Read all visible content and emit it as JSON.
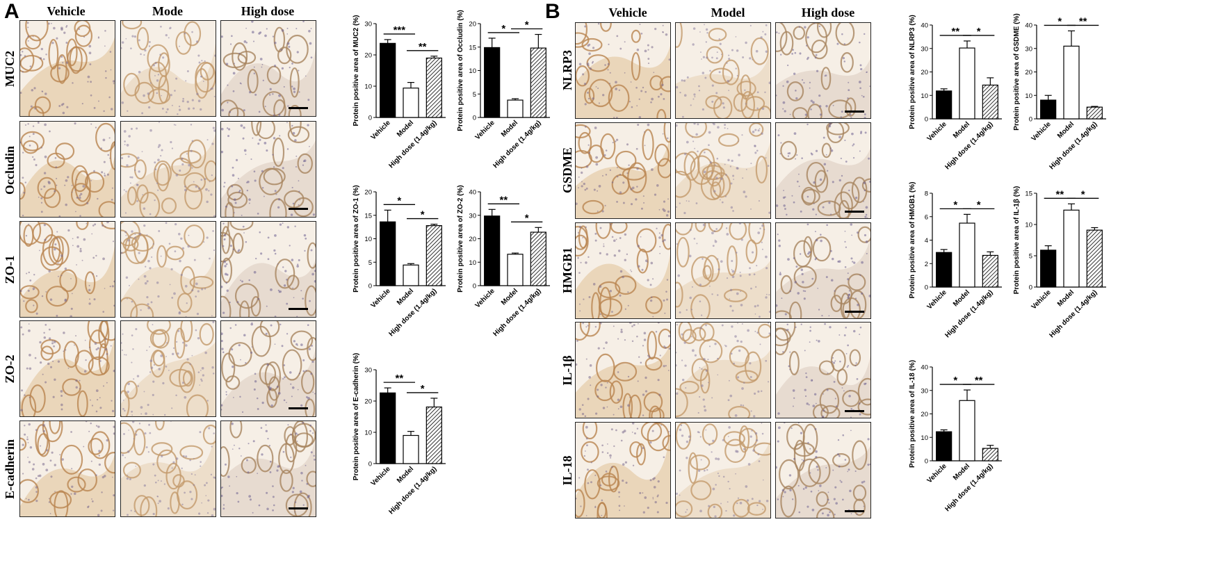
{
  "panels": [
    {
      "letter": "A",
      "columns": [
        "Vehicle",
        "Mode",
        "High dose"
      ],
      "rows": [
        "MUC2",
        "Occludin",
        "ZO-1",
        "ZO-2",
        "E-cadherin"
      ]
    },
    {
      "letter": "B",
      "columns": [
        "Vehicle",
        "Model",
        "High dose"
      ],
      "rows": [
        "NLRP3",
        "GSDME",
        "HMGB1",
        "IL-1β",
        "IL-18"
      ]
    }
  ],
  "colors": {
    "bar_fill_vehicle": "#000000",
    "bar_fill_model": "#ffffff",
    "bar_stroke": "#000000"
  },
  "chart_data": [
    {
      "type": "bar",
      "ylabel": "Protein positive area of MUC2 (%)",
      "categories": [
        "Vehicle",
        "Model",
        "High  dose (1.4g/kg)"
      ],
      "values": [
        23.7,
        9.4,
        19.0
      ],
      "errors": [
        1.2,
        1.8,
        0.6
      ],
      "ylim": [
        0,
        30
      ],
      "yticks": [
        0,
        10,
        20,
        30
      ],
      "sig": [
        {
          "from": 0,
          "to": 1,
          "label": "***"
        },
        {
          "from": 1,
          "to": 2,
          "label": "**"
        }
      ]
    },
    {
      "type": "bar",
      "ylabel": "Protein positive area of Occludin (%)",
      "categories": [
        "Vehicle",
        "Model",
        "High  dose (1.4g/kg)"
      ],
      "values": [
        14.9,
        3.7,
        14.8
      ],
      "errors": [
        2.0,
        0.3,
        2.9
      ],
      "ylim": [
        0,
        20
      ],
      "yticks": [
        0,
        5,
        10,
        15,
        20
      ],
      "sig": [
        {
          "from": 0,
          "to": 1,
          "label": "*"
        },
        {
          "from": 1,
          "to": 2,
          "label": "*"
        }
      ]
    },
    {
      "type": "bar",
      "ylabel": "Protein positive area of ZO-1 (%)",
      "categories": [
        "Vehicle",
        "Model",
        "High  dose (1.4g/kg)"
      ],
      "values": [
        13.6,
        4.4,
        12.8
      ],
      "errors": [
        2.5,
        0.3,
        0.3
      ],
      "ylim": [
        0,
        20
      ],
      "yticks": [
        0,
        5,
        10,
        15,
        20
      ],
      "sig": [
        {
          "from": 0,
          "to": 1,
          "label": "*"
        },
        {
          "from": 1,
          "to": 2,
          "label": "*"
        }
      ]
    },
    {
      "type": "bar",
      "ylabel": "Protein positive area of ZO-2 (%)",
      "categories": [
        "Vehicle",
        "Model",
        "High  dose (1.4g/kg)"
      ],
      "values": [
        29.7,
        13.4,
        22.8
      ],
      "errors": [
        2.8,
        0.5,
        2.0
      ],
      "ylim": [
        0,
        40
      ],
      "yticks": [
        0,
        10,
        20,
        30,
        40
      ],
      "sig": [
        {
          "from": 0,
          "to": 1,
          "label": "**"
        },
        {
          "from": 1,
          "to": 2,
          "label": "*"
        }
      ]
    },
    {
      "type": "bar",
      "ylabel": "Protein positive area of E-cadherin (%)",
      "categories": [
        "Vehicle",
        "Model",
        "High  dose (1.4g/kg)"
      ],
      "values": [
        22.6,
        9.0,
        18.1
      ],
      "errors": [
        1.6,
        1.3,
        2.8
      ],
      "ylim": [
        0,
        30
      ],
      "yticks": [
        0,
        10,
        20,
        30
      ],
      "sig": [
        {
          "from": 0,
          "to": 1,
          "label": "**"
        },
        {
          "from": 1,
          "to": 2,
          "label": "*"
        }
      ]
    },
    {
      "type": "bar",
      "ylabel": "Protein positive area of NLRP3 (%)",
      "categories": [
        "Vehicle",
        "Model",
        "High  dose (1.4g/kg)"
      ],
      "values": [
        11.9,
        30.2,
        14.4
      ],
      "errors": [
        0.9,
        3.0,
        3.1
      ],
      "ylim": [
        0,
        40
      ],
      "yticks": [
        0,
        10,
        20,
        30,
        40
      ],
      "sig": [
        {
          "from": 0,
          "to": 1,
          "label": "**"
        },
        {
          "from": 1,
          "to": 2,
          "label": "*"
        }
      ]
    },
    {
      "type": "bar",
      "ylabel": "Protein positive area of GSDME (%)",
      "categories": [
        "Vehicle",
        "Model",
        "High  dose (1.4g/kg)"
      ],
      "values": [
        8.0,
        31.0,
        5.0
      ],
      "errors": [
        2.0,
        6.5,
        0.3
      ],
      "ylim": [
        0,
        40
      ],
      "yticks": [
        0,
        10,
        20,
        30,
        40
      ],
      "sig": [
        {
          "from": 0,
          "to": 1,
          "label": "*"
        },
        {
          "from": 1,
          "to": 2,
          "label": "**"
        }
      ]
    },
    {
      "type": "bar",
      "ylabel": "Protein positive area of HMGB1 (%)",
      "categories": [
        "Vehicle",
        "Model",
        "High  dose (1.4g/kg)"
      ],
      "values": [
        2.95,
        5.45,
        2.7
      ],
      "errors": [
        0.25,
        0.75,
        0.3
      ],
      "ylim": [
        0,
        8
      ],
      "yticks": [
        0,
        2,
        4,
        6,
        8
      ],
      "sig": [
        {
          "from": 0,
          "to": 1,
          "label": "*"
        },
        {
          "from": 1,
          "to": 2,
          "label": "*"
        }
      ]
    },
    {
      "type": "bar",
      "ylabel": "Protein positive area of IL-1β (%)",
      "categories": [
        "Vehicle",
        "Model",
        "High  dose (1.4g/kg)"
      ],
      "values": [
        5.9,
        12.3,
        9.1
      ],
      "errors": [
        0.7,
        1.0,
        0.4
      ],
      "ylim": [
        0,
        15
      ],
      "yticks": [
        0,
        5,
        10,
        15
      ],
      "sig": [
        {
          "from": 0,
          "to": 1,
          "label": "**"
        },
        {
          "from": 1,
          "to": 2,
          "label": "*"
        }
      ]
    },
    {
      "type": "bar",
      "ylabel": "Protein positive area of IL-18 (%)",
      "categories": [
        "Vehicle",
        "Model",
        "High  dose (1.4g/kg)"
      ],
      "values": [
        12.4,
        25.7,
        5.3
      ],
      "errors": [
        0.8,
        4.5,
        1.3
      ],
      "ylim": [
        0,
        40
      ],
      "yticks": [
        0,
        10,
        20,
        30,
        40
      ],
      "sig": [
        {
          "from": 0,
          "to": 1,
          "label": "*"
        },
        {
          "from": 1,
          "to": 2,
          "label": "**"
        }
      ]
    }
  ]
}
